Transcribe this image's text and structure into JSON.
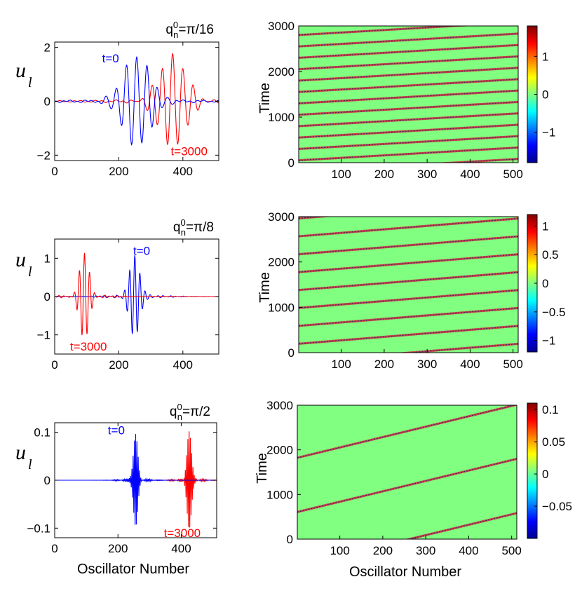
{
  "figure": {
    "shared_xlabel": "Oscillator Number",
    "left_ylabel": "u",
    "left_ylabel_sub": "l",
    "right_ylabel": "Time",
    "colors": {
      "t0": "#0000ff",
      "t3000": "#ff0000",
      "background_map": "#80ff80"
    }
  },
  "chart_data": [
    {
      "id": "p1-left",
      "type": "line",
      "title_base": "q",
      "title_sup": "0",
      "title_sub": "n",
      "title_rest": "=π/16",
      "xlim": [
        0,
        512
      ],
      "ylim": [
        -2.2,
        2.2
      ],
      "xticks": [
        "0",
        "200",
        "400"
      ],
      "xtick_values": [
        0,
        200,
        400
      ],
      "yticks": [
        "−2",
        "0",
        "2"
      ],
      "ytick_values": [
        -2,
        0,
        2
      ],
      "series": [
        {
          "name": "t=0",
          "center": 256,
          "amplitude": 1.7,
          "width": 60,
          "q": 0.196,
          "color": "#0000ff"
        },
        {
          "name": "t=3000",
          "center": 368,
          "amplitude": 1.7,
          "width": 60,
          "q": 0.196,
          "color": "#ff0000"
        }
      ],
      "annotations": [
        {
          "text": "t=0",
          "x": 148,
          "y": 1.6,
          "color": "#0000ff"
        },
        {
          "text": "t=3000",
          "x": 362,
          "y": -1.85,
          "color": "#ff0000"
        }
      ]
    },
    {
      "id": "p1-right",
      "type": "heatmap",
      "xlim": [
        1,
        512
      ],
      "ylim": [
        0,
        3000
      ],
      "xticks": [
        "100",
        "200",
        "300",
        "400",
        "500"
      ],
      "xtick_values": [
        100,
        200,
        300,
        400,
        500
      ],
      "yticks": [
        "0",
        "1000",
        "2000",
        "3000"
      ],
      "ytick_values": [
        0,
        1000,
        2000,
        3000
      ],
      "stripe_period_time": 250,
      "stripe_slope_time_per_osc": 0.55,
      "stripe_phase_time": -200,
      "colorbar_ticks": [
        "−1",
        "0",
        "1"
      ],
      "colorbar_tick_values": [
        -1,
        0,
        1
      ],
      "colorbar_range": [
        -1.8,
        1.8
      ]
    },
    {
      "id": "p2-left",
      "type": "line",
      "title_base": "q",
      "title_sup": "0",
      "title_sub": "n",
      "title_rest": "=π/8",
      "xlim": [
        0,
        512
      ],
      "ylim": [
        -1.5,
        1.5
      ],
      "xticks": [
        "0",
        "200",
        "400"
      ],
      "xtick_values": [
        0,
        200,
        400
      ],
      "yticks": [
        "−1",
        "0",
        "1"
      ],
      "ytick_values": [
        -1,
        0,
        1
      ],
      "series": [
        {
          "name": "t=0",
          "center": 250,
          "amplitude": 1.1,
          "width": 22,
          "q": 0.393,
          "color": "#0000ff"
        },
        {
          "name": "t=3000",
          "center": 93,
          "amplitude": 1.1,
          "width": 22,
          "q": 0.393,
          "color": "#ff0000"
        }
      ],
      "annotations": [
        {
          "text": "t=0",
          "x": 245,
          "y": 1.2,
          "color": "#0000ff"
        },
        {
          "text": "t=3000",
          "x": 48,
          "y": -1.3,
          "color": "#ff0000"
        }
      ]
    },
    {
      "id": "p2-right",
      "type": "heatmap",
      "xlim": [
        1,
        512
      ],
      "ylim": [
        0,
        3000
      ],
      "xticks": [
        "100",
        "200",
        "300",
        "400",
        "500"
      ],
      "xtick_values": [
        100,
        200,
        300,
        400,
        500
      ],
      "yticks": [
        "0",
        "1000",
        "2000",
        "3000"
      ],
      "ytick_values": [
        0,
        1000,
        2000,
        3000
      ],
      "stripe_period_time": 395,
      "stripe_slope_time_per_osc": 0.77,
      "stripe_phase_time": -200,
      "colorbar_ticks": [
        "−1",
        "−0.5",
        "0",
        "0.5",
        "1"
      ],
      "colorbar_tick_values": [
        -1,
        -0.5,
        0,
        0.5,
        1
      ],
      "colorbar_range": [
        -1.2,
        1.2
      ]
    },
    {
      "id": "p3-left",
      "type": "line",
      "title_base": "q",
      "title_sup": "0",
      "title_sub": "n",
      "title_rest": "=π/2",
      "xlim": [
        0,
        512
      ],
      "ylim": [
        -0.12,
        0.12
      ],
      "xticks": [
        "0",
        "200",
        "400"
      ],
      "xtick_values": [
        0,
        200,
        400
      ],
      "yticks": [
        "−0.1",
        "0",
        "0.1"
      ],
      "ytick_values": [
        -0.1,
        0,
        0.1
      ],
      "series": [
        {
          "name": "t=0",
          "center": 256,
          "amplitude": 0.1,
          "width": 10,
          "q": 1.5708,
          "color": "#0000ff"
        },
        {
          "name": "t=3000",
          "center": 425,
          "amplitude": 0.1,
          "width": 10,
          "q": 1.5708,
          "color": "#ff0000"
        }
      ],
      "annotations": [
        {
          "text": "t=0",
          "x": 168,
          "y": 0.105,
          "color": "#0000ff"
        },
        {
          "text": "t=3000",
          "x": 345,
          "y": -0.11,
          "color": "#ff0000"
        }
      ]
    },
    {
      "id": "p3-right",
      "type": "heatmap",
      "xlim": [
        1,
        512
      ],
      "ylim": [
        0,
        3000
      ],
      "xticks": [
        "100",
        "200",
        "300",
        "400",
        "500"
      ],
      "xtick_values": [
        100,
        200,
        300,
        400,
        500
      ],
      "yticks": [
        "0",
        "1000",
        "2000",
        "3000"
      ],
      "ytick_values": [
        0,
        1000,
        2000,
        3000
      ],
      "stripe_period_time": 1215,
      "stripe_slope_time_per_osc": 2.33,
      "stripe_phase_time": -610,
      "colorbar_ticks": [
        "−0.05",
        "0",
        "0.05",
        "0.1"
      ],
      "colorbar_tick_values": [
        -0.05,
        0,
        0.05,
        0.1
      ],
      "colorbar_range": [
        -0.1,
        0.11
      ]
    }
  ]
}
